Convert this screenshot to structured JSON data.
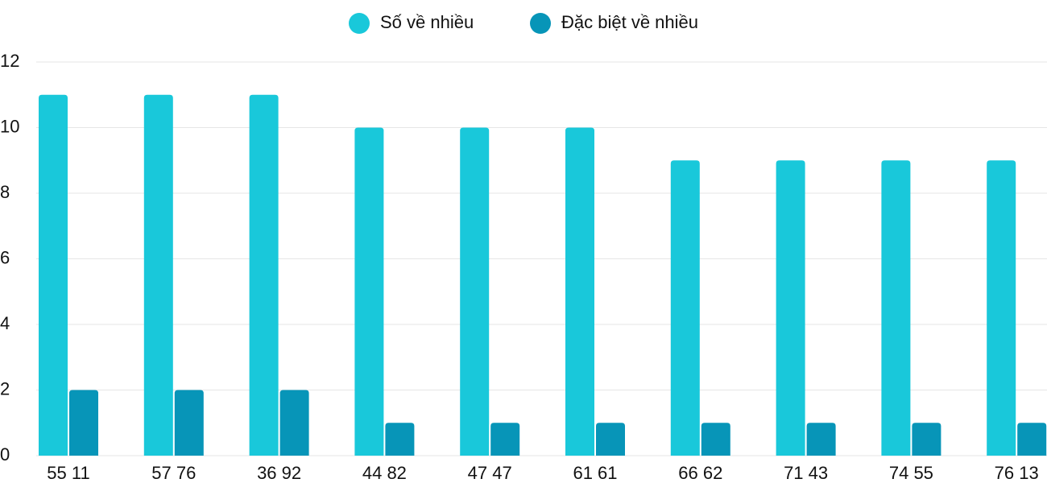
{
  "chart_data": {
    "type": "bar",
    "categories": [
      "55 11",
      "57 76",
      "36 92",
      "44 82",
      "47 47",
      "61 61",
      "66 62",
      "71 43",
      "74 55",
      "76 13"
    ],
    "series": [
      {
        "name": "Số về nhiều",
        "color": "#19c8da",
        "values": [
          11,
          11,
          11,
          10,
          10,
          10,
          9,
          9,
          9,
          9
        ]
      },
      {
        "name": "Đặc biệt về nhiều",
        "color": "#0795b8",
        "values": [
          2,
          2,
          2,
          1,
          1,
          1,
          1,
          1,
          1,
          1
        ]
      }
    ],
    "ylim": [
      0,
      12
    ],
    "yticks": [
      0,
      2,
      4,
      6,
      8,
      10,
      12
    ],
    "grid": true,
    "legend": "top"
  }
}
